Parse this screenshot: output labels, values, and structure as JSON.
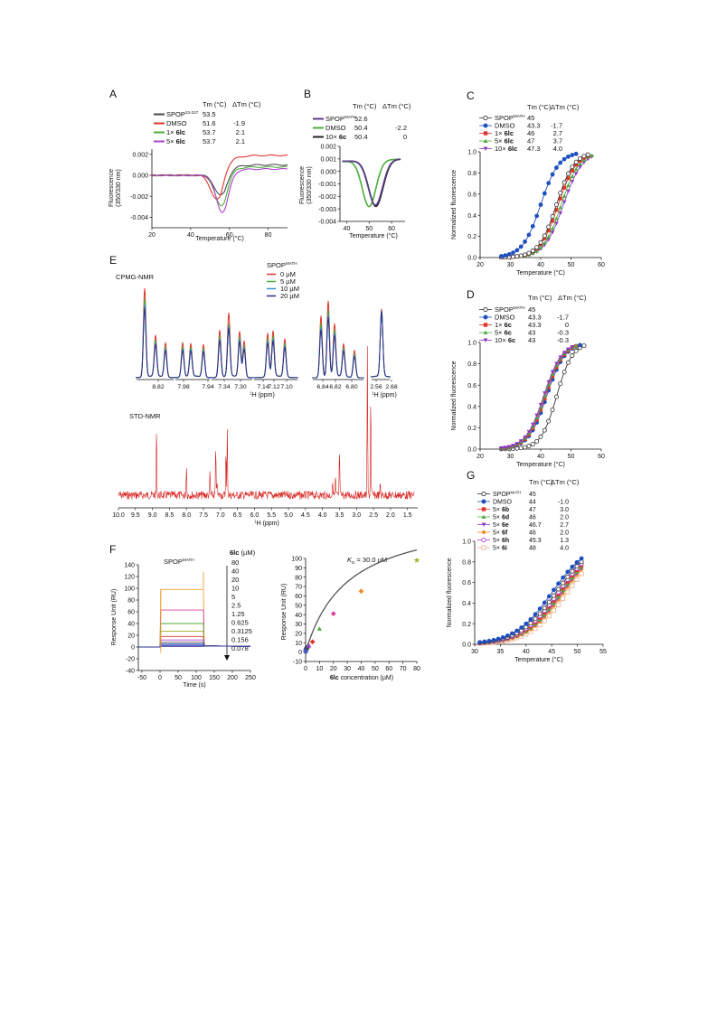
{
  "panels": {
    "A": {
      "letter": "A",
      "header_tm": "Tm (°C)",
      "header_dtm": "ΔTm (°C)",
      "legend": [
        {
          "name": "SPOP",
          "sup": "23-337",
          "tm": "53.5",
          "dtm": "",
          "color": "#4a4a4a"
        },
        {
          "name": "DMSO",
          "sup": "",
          "tm": "51.6",
          "dtm": "-1.9",
          "color": "#e0352b"
        },
        {
          "name": "1× ",
          "bold": "6lc",
          "tm": "53.7",
          "dtm": "2.1",
          "color": "#4cae3b"
        },
        {
          "name": "5× ",
          "bold": "6lc",
          "tm": "53.7",
          "dtm": "2.1",
          "color": "#b040d0"
        }
      ],
      "ylabel1": "Fluorescence",
      "ylabel2": "(350/330 nm)",
      "xlabel": "Temperature (°C)",
      "xticks": [
        "20",
        "40",
        "60",
        "80"
      ],
      "yticks": [
        "0.002",
        "0.000",
        "-0.002",
        "-0.004"
      ]
    },
    "B": {
      "letter": "B",
      "header_tm": "Tm (°C)",
      "header_dtm": "ΔTm (°C)",
      "legend": [
        {
          "name": "SPOP",
          "sup": "MATH",
          "tm": "52.6",
          "dtm": "",
          "color": "#5a3d8a"
        },
        {
          "name": "DMSO",
          "sup": "",
          "tm": "50.4",
          "dtm": "-2.2",
          "color": "#4cae3b"
        },
        {
          "name": "10× ",
          "bold": "6c",
          "tm": "50.4",
          "dtm": "0",
          "color": "#222222"
        }
      ],
      "ylabel1": "Fluorescence",
      "ylabel2": "(350/330 nm)",
      "xlabel": "Temperature (°C)",
      "xticks": [
        "40",
        "50",
        "60"
      ],
      "yticks": [
        "0.002",
        "0.001",
        "0.000",
        "-0.001",
        "-0.002",
        "-0.003",
        "-0.004"
      ]
    },
    "C": {
      "letter": "C",
      "header_tm": "Tm (°C)",
      "header_dtm": "ΔTm (°C)",
      "legend": [
        {
          "name": "SPOP",
          "sup": "MATH",
          "tm": "45",
          "dtm": "",
          "color": "#333333",
          "marker": "circle-open"
        },
        {
          "name": "DMSO",
          "sup": "",
          "tm": "43.3",
          "dtm": "-1.7",
          "color": "#1f4fbf",
          "marker": "circle"
        },
        {
          "name": "1× ",
          "bold": "6lc",
          "tm": "46",
          "dtm": "2.7",
          "color": "#e0352b",
          "marker": "square"
        },
        {
          "name": "5× ",
          "bold": "6lc",
          "tm": "47",
          "dtm": "3.7",
          "color": "#4cae3b",
          "marker": "triangle"
        },
        {
          "name": "10× ",
          "bold": "6lc",
          "tm": "47.3",
          "dtm": "4.0",
          "color": "#8a3cc8",
          "marker": "triangle-down"
        }
      ],
      "ylabel": "Normalized fluorescence",
      "xlabel": "Temperature (°C)",
      "xticks": [
        "20",
        "30",
        "40",
        "50",
        "60"
      ],
      "yticks": [
        "0.0",
        "0.2",
        "0.4",
        "0.6",
        "0.8",
        "1.0"
      ]
    },
    "D": {
      "letter": "D",
      "header_tm": "Tm (°C)",
      "header_dtm": "ΔTm (°C)",
      "legend": [
        {
          "name": "SPOP",
          "sup": "MATH",
          "tm": "45",
          "dtm": "",
          "color": "#333333",
          "marker": "circle-open"
        },
        {
          "name": "DMSO",
          "sup": "",
          "tm": "43.3",
          "dtm": "-1.7",
          "color": "#1f4fbf",
          "marker": "circle"
        },
        {
          "name": "1× ",
          "bold": "6c",
          "tm": "43.3",
          "dtm": "0",
          "color": "#e0352b",
          "marker": "square"
        },
        {
          "name": "5× ",
          "bold": "6c",
          "tm": "43",
          "dtm": "-0.3",
          "color": "#4cae3b",
          "marker": "triangle"
        },
        {
          "name": "10× ",
          "bold": "6c",
          "tm": "43",
          "dtm": "-0.3",
          "color": "#8a3cc8",
          "marker": "triangle-down"
        }
      ],
      "ylabel": "Normalized fluorescence",
      "xlabel": "Temperature (°C)",
      "xticks": [
        "20",
        "30",
        "40",
        "50",
        "60"
      ],
      "yticks": [
        "0.0",
        "0.2",
        "0.4",
        "0.6",
        "0.8",
        "1.0"
      ]
    },
    "E": {
      "letter": "E",
      "cpmg_title": "CPMG-NMR",
      "std_title": "STD-NMR",
      "legend_title": "SPOP",
      "legend_sup": "MATH",
      "legend": [
        {
          "name": "0 µM",
          "color": "#e0352b"
        },
        {
          "name": "5 µM",
          "color": "#4cae3b"
        },
        {
          "name": "10 µM",
          "color": "#3a8fd0"
        },
        {
          "name": "20 µM",
          "color": "#2a2f8a"
        }
      ],
      "cpmg_ticks": [
        "8.82",
        "7.98",
        "7.94",
        "7.34",
        "7.30",
        "7.14",
        "7.12",
        "7.10",
        "6.84",
        "6.82",
        "6.80",
        "2.56",
        "2.68"
      ],
      "cpmg_xlabel": "H (ppm)",
      "cpmg_xlabel_sup": "1",
      "std_xticks": [
        "10.0",
        "9.5",
        "9.0",
        "8.5",
        "8.0",
        "7.5",
        "7.0",
        "6.5",
        "6.0",
        "5.5",
        "5.0",
        "4.5",
        "4.0",
        "3.5",
        "3.0",
        "2.5",
        "2.0",
        "1.5"
      ],
      "std_xlabel": "H (ppm)",
      "std_xlabel_sup": "1"
    },
    "F": {
      "letter": "F",
      "spr_title": "SPOP",
      "spr_title_sup": "MATH",
      "conc_header": "6lc",
      "conc_unit": " (µM)",
      "concentrations": [
        "80",
        "40",
        "20",
        "10",
        "5",
        "2.5",
        "1.25",
        "0.625",
        "0.3125",
        "0.156",
        "0.078"
      ],
      "ylabel": "Response Unit (RU)",
      "xlabel": "Time (s)",
      "xticks": [
        "-50",
        "0",
        "50",
        "100",
        "150",
        "200",
        "250"
      ],
      "yticks": [
        "140",
        "120",
        "100",
        "80",
        "60",
        "40",
        "20",
        "0",
        "-20",
        "-40"
      ],
      "kd_label": "K",
      "kd_sub": "D",
      "kd_value": " = 30.0 µM",
      "fit_ylabel": "Response Unit (RU)",
      "fit_xlabel_bold": "6lc",
      "fit_xlabel": " concentration (µM)",
      "fit_xticks": [
        "0",
        "10",
        "20",
        "30",
        "40",
        "50",
        "60",
        "70",
        "80"
      ],
      "fit_yticks": [
        "100",
        "90",
        "80",
        "70",
        "60",
        "50",
        "40",
        "30",
        "20",
        "10",
        "0",
        "-10"
      ]
    },
    "G": {
      "letter": "G",
      "header_tm": "Tm (°C)",
      "header_dtm": "ΔTm (°C)",
      "legend": [
        {
          "name": "SPOP",
          "sup": "MATH",
          "tm": "45",
          "dtm": "",
          "color": "#333333",
          "marker": "circle-open"
        },
        {
          "name": "DMSO",
          "sup": "",
          "tm": "44",
          "dtm": "-1.0",
          "color": "#1f4fbf",
          "marker": "circle"
        },
        {
          "name": "5× ",
          "bold": "6b",
          "tm": "47",
          "dtm": "3.0",
          "color": "#e0352b",
          "marker": "square"
        },
        {
          "name": "5× ",
          "bold": "6d",
          "tm": "46",
          "dtm": "2.0",
          "color": "#4cae3b",
          "marker": "triangle"
        },
        {
          "name": "5× ",
          "bold": "6e",
          "tm": "46.7",
          "dtm": "2.7",
          "color": "#8a3cc8",
          "marker": "triangle-down"
        },
        {
          "name": "5× ",
          "bold": "6f",
          "tm": "46",
          "dtm": "2.0",
          "color": "#f08a24",
          "marker": "diamond"
        },
        {
          "name": "5× ",
          "bold": "6h",
          "tm": "45.3",
          "dtm": "1.3",
          "color": "#b040d0",
          "marker": "circle-open"
        },
        {
          "name": "5× ",
          "bold": "6i",
          "tm": "48",
          "dtm": "4.0",
          "color": "#e8b090",
          "marker": "square-open"
        }
      ],
      "ylabel": "Normalized fluorescence",
      "xlabel": "Temperature (°C)",
      "xticks": [
        "30",
        "35",
        "40",
        "45",
        "50",
        "55"
      ],
      "yticks": [
        "0.0",
        "0.2",
        "0.4",
        "0.6",
        "0.8",
        "1.0"
      ]
    }
  },
  "chart_data": [
    {
      "panel": "A",
      "type": "line",
      "xlabel": "Temperature (°C)",
      "ylabel": "Fluorescence (350/330 nm)",
      "xlim": [
        20,
        90
      ],
      "ylim": [
        -0.005,
        0.0025
      ],
      "series": [
        {
          "name": "SPOP23-337",
          "color": "#4a4a4a",
          "tm": 53.5
        },
        {
          "name": "DMSO",
          "color": "#e0352b",
          "tm": 51.6
        },
        {
          "name": "1× 6lc",
          "color": "#4cae3b",
          "tm": 53.7
        },
        {
          "name": "5× 6lc",
          "color": "#b040d0",
          "tm": 53.7
        }
      ]
    },
    {
      "panel": "B",
      "type": "line",
      "xlabel": "Temperature (°C)",
      "ylabel": "Fluorescence (350/330 nm)",
      "xlim": [
        37,
        66
      ],
      "ylim": [
        -0.004,
        0.002
      ],
      "series": [
        {
          "name": "SPOPMATH",
          "color": "#5a3d8a",
          "tm": 52.6
        },
        {
          "name": "DMSO",
          "color": "#4cae3b",
          "tm": 50.4
        },
        {
          "name": "10× 6c",
          "color": "#222222",
          "tm": 50.4
        }
      ]
    },
    {
      "panel": "C",
      "type": "line",
      "xlabel": "Temperature (°C)",
      "ylabel": "Normalized fluorescence",
      "xlim": [
        20,
        60
      ],
      "ylim": [
        0,
        1.0
      ],
      "series": [
        {
          "name": "SPOPMATH",
          "tm": 45
        },
        {
          "name": "DMSO",
          "tm": 43.3
        },
        {
          "name": "1× 6lc",
          "tm": 46
        },
        {
          "name": "5× 6lc",
          "tm": 47
        },
        {
          "name": "10× 6lc",
          "tm": 47.3
        }
      ]
    },
    {
      "panel": "D",
      "type": "line",
      "xlabel": "Temperature (°C)",
      "ylabel": "Normalized fluorescence",
      "xlim": [
        20,
        60
      ],
      "ylim": [
        0,
        1.0
      ],
      "series": [
        {
          "name": "SPOPMATH",
          "tm": 45
        },
        {
          "name": "DMSO",
          "tm": 43.3
        },
        {
          "name": "1× 6c",
          "tm": 43.3
        },
        {
          "name": "5× 6c",
          "tm": 43
        },
        {
          "name": "10× 6c",
          "tm": 43
        }
      ]
    },
    {
      "panel": "F-fit",
      "type": "scatter",
      "xlabel": "6lc concentration (µM)",
      "ylabel": "Response Unit (RU)",
      "xlim": [
        0,
        80
      ],
      "ylim": [
        -10,
        100
      ],
      "kd": 30.0,
      "points": [
        {
          "x": 0.078,
          "y": 1,
          "color": "#2a2f8a"
        },
        {
          "x": 0.156,
          "y": 2,
          "color": "#3a8fd0"
        },
        {
          "x": 0.3125,
          "y": 3,
          "color": "#8a3cc8"
        },
        {
          "x": 0.625,
          "y": 4,
          "color": "#1f4fbf"
        },
        {
          "x": 1.25,
          "y": 5,
          "color": "#4a4a4a"
        },
        {
          "x": 2.5,
          "y": 7,
          "color": "#b040d0"
        },
        {
          "x": 5,
          "y": 11,
          "color": "#e0352b"
        },
        {
          "x": 10,
          "y": 25,
          "color": "#4cae3b"
        },
        {
          "x": 20,
          "y": 41,
          "color": "#e040a0"
        },
        {
          "x": 40,
          "y": 65,
          "color": "#f08a24"
        },
        {
          "x": 80,
          "y": 98,
          "color": "#a0b020"
        }
      ]
    },
    {
      "panel": "G",
      "type": "line",
      "xlabel": "Temperature (°C)",
      "ylabel": "Normalized fluorescence",
      "xlim": [
        30,
        55
      ],
      "ylim": [
        0,
        1.0
      ],
      "series": [
        {
          "name": "SPOPMATH",
          "tm": 45
        },
        {
          "name": "DMSO",
          "tm": 44
        },
        {
          "name": "5× 6b",
          "tm": 47
        },
        {
          "name": "5× 6d",
          "tm": 46
        },
        {
          "name": "5× 6e",
          "tm": 46.7
        },
        {
          "name": "5× 6f",
          "tm": 46
        },
        {
          "name": "5× 6h",
          "tm": 45.3
        },
        {
          "name": "5× 6i",
          "tm": 48
        }
      ]
    }
  ]
}
